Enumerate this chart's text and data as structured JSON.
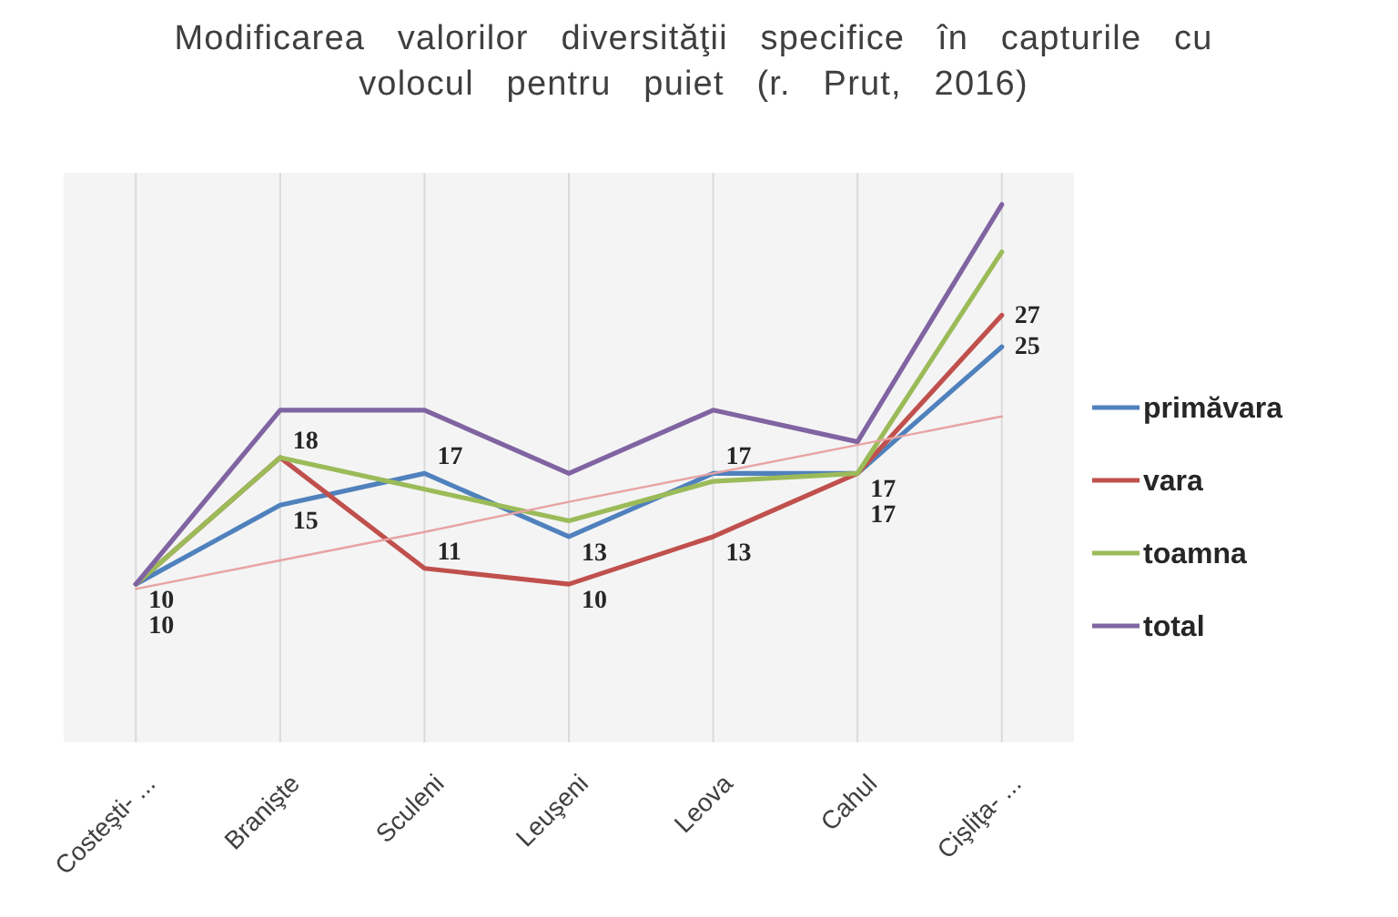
{
  "chart_data": {
    "type": "line",
    "title": "Modificarea valorilor diversităţii specifice în capturile cu volocul pentru puiet (r. Prut, 2016)",
    "categories": [
      "Costeşti- ...",
      "Branişte",
      "Sculeni",
      "Leuşeni",
      "Leova",
      "Cahul",
      "Cişliţa- ..."
    ],
    "series": [
      {
        "name": "primăvara",
        "color": "#4f81bd",
        "values": [
          10,
          15,
          17,
          13,
          17,
          17,
          25
        ],
        "value_labels": [
          "10",
          "15",
          "17",
          "13",
          "17",
          "17",
          "25"
        ]
      },
      {
        "name": "vara",
        "color": "#c0504d",
        "values": [
          10,
          18,
          11,
          10,
          13,
          17,
          27
        ],
        "value_labels": [
          "10",
          "18",
          "11",
          "10",
          "13",
          "17",
          "27"
        ]
      },
      {
        "name": "toamna",
        "color": "#9bbb59",
        "values": [
          10,
          18,
          16,
          14,
          16.5,
          17,
          31
        ]
      },
      {
        "name": "total",
        "color": "#8064a2",
        "values": [
          10,
          21,
          21,
          17,
          21,
          19,
          34
        ]
      },
      {
        "color": "#e8a3a3",
        "values": [
          9.7,
          11.5,
          13.3,
          15.2,
          17,
          18.8,
          20.6
        ]
      }
    ],
    "ylim": [
      0,
      36
    ],
    "grid": "x",
    "legend": "right",
    "tick_labels": "x"
  }
}
